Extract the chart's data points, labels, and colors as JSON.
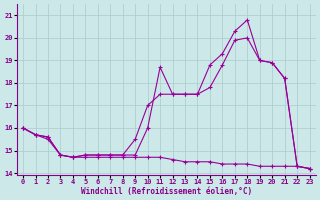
{
  "xlabel": "Windchill (Refroidissement éolien,°C)",
  "x": [
    0,
    1,
    2,
    3,
    4,
    5,
    6,
    7,
    8,
    9,
    10,
    11,
    12,
    13,
    14,
    15,
    16,
    17,
    18,
    19,
    20,
    21,
    22,
    23
  ],
  "line1": [
    16.0,
    15.7,
    15.6,
    14.8,
    14.7,
    14.8,
    14.8,
    14.8,
    14.8,
    15.5,
    17.0,
    17.5,
    17.5,
    17.5,
    17.5,
    17.8,
    18.8,
    19.9,
    20.0,
    19.0,
    18.9,
    18.2,
    14.3,
    14.2
  ],
  "line2": [
    16.0,
    15.7,
    15.6,
    14.8,
    14.7,
    14.8,
    14.8,
    14.8,
    14.8,
    14.8,
    16.0,
    18.7,
    17.5,
    17.5,
    17.5,
    18.8,
    19.3,
    20.3,
    20.8,
    19.0,
    18.9,
    18.2,
    14.3,
    14.2
  ],
  "line3": [
    16.0,
    15.7,
    15.5,
    14.8,
    14.7,
    14.7,
    14.7,
    14.7,
    14.7,
    14.7,
    14.7,
    14.7,
    14.6,
    14.5,
    14.5,
    14.5,
    14.4,
    14.4,
    14.4,
    14.3,
    14.3,
    14.3,
    14.3,
    14.2
  ],
  "line_color": "#990099",
  "bg_color": "#cce8e8",
  "grid_color": "#aacccc",
  "ylim": [
    13.9,
    21.5
  ],
  "yticks": [
    14,
    15,
    16,
    17,
    18,
    19,
    20,
    21
  ],
  "xlim": [
    -0.5,
    23.5
  ]
}
